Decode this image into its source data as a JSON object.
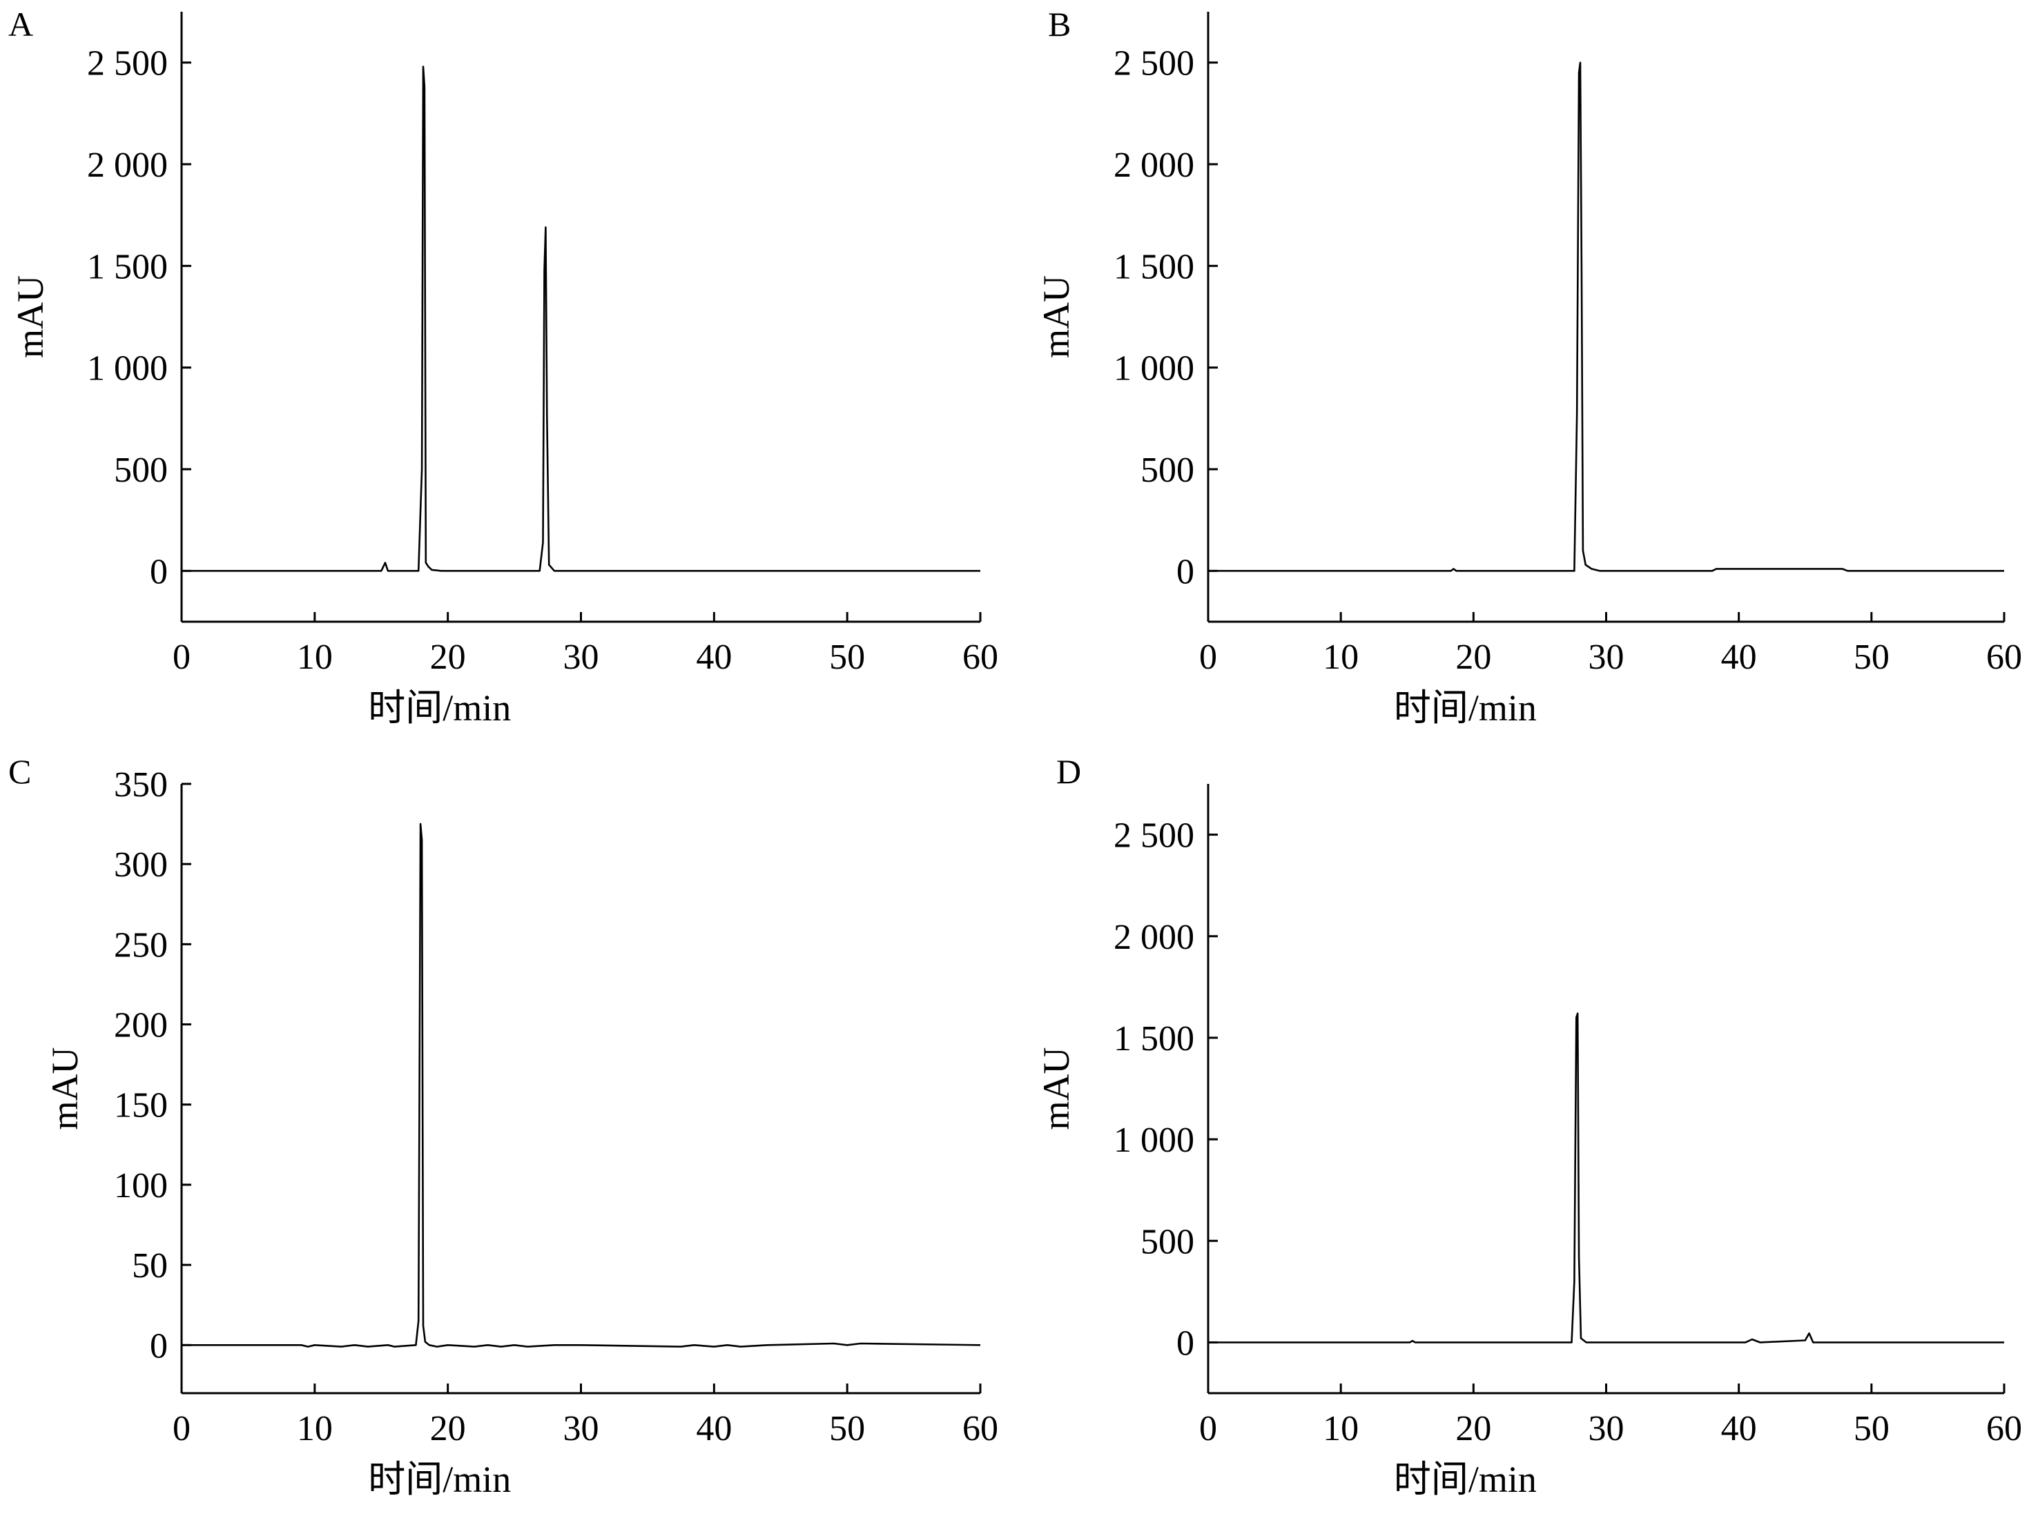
{
  "chart_data": [
    {
      "type": "line",
      "panel": "A",
      "xlabel": "时间/min",
      "ylabel": "mAU",
      "xlim": [
        0,
        60
      ],
      "ylim": [
        -250,
        2750
      ],
      "x_ticks": [
        0,
        10,
        20,
        30,
        40,
        50,
        60
      ],
      "x_tick_labels": [
        "0",
        "10",
        "20",
        "30",
        "40",
        "50",
        "60"
      ],
      "y_ticks": [
        0,
        500,
        1000,
        1500,
        2000,
        2500
      ],
      "y_tick_labels": [
        "0",
        "500",
        "1 000",
        "1 500",
        "2 000",
        "2 500"
      ],
      "series": [
        {
          "x": [
            0,
            15.0,
            15.3,
            15.5,
            17.8,
            18.05,
            18.15,
            18.25,
            18.35,
            18.55,
            18.8,
            19.5,
            26.9,
            27.15,
            27.25,
            27.35,
            27.45,
            27.6,
            28.0,
            60
          ],
          "y": [
            0,
            0,
            40,
            0,
            0,
            500,
            2480,
            2380,
            40,
            20,
            5,
            0,
            0,
            140,
            1480,
            1690,
            760,
            30,
            0,
            0
          ]
        }
      ]
    },
    {
      "type": "line",
      "panel": "B",
      "xlabel": "时间/min",
      "ylabel": "mAU",
      "xlim": [
        0,
        60
      ],
      "ylim": [
        -250,
        2750
      ],
      "x_ticks": [
        0,
        10,
        20,
        30,
        40,
        50,
        60
      ],
      "x_tick_labels": [
        "0",
        "10",
        "20",
        "30",
        "40",
        "50",
        "60"
      ],
      "y_ticks": [
        0,
        500,
        1000,
        1500,
        2000,
        2500
      ],
      "y_tick_labels": [
        "0",
        "500",
        "1 000",
        "1 500",
        "2 000",
        "2 500"
      ],
      "series": [
        {
          "x": [
            0,
            18.3,
            18.5,
            18.7,
            27.6,
            27.8,
            27.95,
            28.05,
            28.15,
            28.25,
            28.45,
            28.9,
            29.5,
            38.0,
            38.3,
            47.8,
            48.2,
            60
          ],
          "y": [
            0,
            0,
            10,
            0,
            0,
            770,
            2450,
            2500,
            1500,
            100,
            30,
            10,
            0,
            0,
            10,
            10,
            0,
            0
          ]
        }
      ]
    },
    {
      "type": "line",
      "panel": "C",
      "xlabel": "时间/min",
      "ylabel": "mAU",
      "xlim": [
        0,
        60
      ],
      "ylim": [
        -30,
        350
      ],
      "x_ticks": [
        0,
        10,
        20,
        30,
        40,
        50,
        60
      ],
      "x_tick_labels": [
        "0",
        "10",
        "20",
        "30",
        "40",
        "50",
        "60"
      ],
      "y_ticks": [
        0,
        50,
        100,
        150,
        200,
        250,
        300,
        350
      ],
      "y_tick_labels": [
        "0",
        "50",
        "100",
        "150",
        "200",
        "250",
        "300",
        "350"
      ],
      "series": [
        {
          "x": [
            0,
            9.0,
            9.5,
            10.0,
            12.0,
            13.0,
            14.0,
            15.5,
            16.0,
            17.6,
            17.8,
            17.95,
            18.05,
            18.15,
            18.3,
            18.6,
            19.2,
            20.0,
            22.0,
            23.0,
            24.0,
            25.0,
            26.0,
            28.0,
            30.0,
            37.5,
            38.5,
            40.0,
            41.0,
            42.0,
            44.0,
            49.0,
            50.0,
            51.0,
            60
          ],
          "y": [
            0,
            0,
            -1,
            0,
            -1,
            0,
            -1,
            0,
            -1,
            0,
            15,
            325,
            315,
            12,
            2,
            0,
            -1,
            0,
            -1,
            0,
            -1,
            0,
            -1,
            0,
            0,
            -1,
            0,
            -1,
            0,
            -1,
            0,
            1,
            0,
            1,
            0
          ]
        }
      ]
    },
    {
      "type": "line",
      "panel": "D",
      "xlabel": "时间/min",
      "ylabel": "mAU",
      "xlim": [
        0,
        60
      ],
      "ylim": [
        -250,
        2750
      ],
      "x_ticks": [
        0,
        10,
        20,
        30,
        40,
        50,
        60
      ],
      "x_tick_labels": [
        "0",
        "10",
        "20",
        "30",
        "40",
        "50",
        "60"
      ],
      "y_ticks": [
        0,
        500,
        1000,
        1500,
        2000,
        2500
      ],
      "y_tick_labels": [
        "0",
        "500",
        "1 000",
        "1 500",
        "2 000",
        "2 500"
      ],
      "series": [
        {
          "x": [
            0,
            15.2,
            15.4,
            15.6,
            27.4,
            27.6,
            27.75,
            27.85,
            27.95,
            28.1,
            28.5,
            40.5,
            41.0,
            41.6,
            45.0,
            45.3,
            45.6,
            60
          ],
          "y": [
            0,
            0,
            8,
            0,
            0,
            300,
            1600,
            1620,
            420,
            20,
            0,
            0,
            15,
            0,
            10,
            45,
            0,
            0
          ]
        }
      ]
    }
  ]
}
